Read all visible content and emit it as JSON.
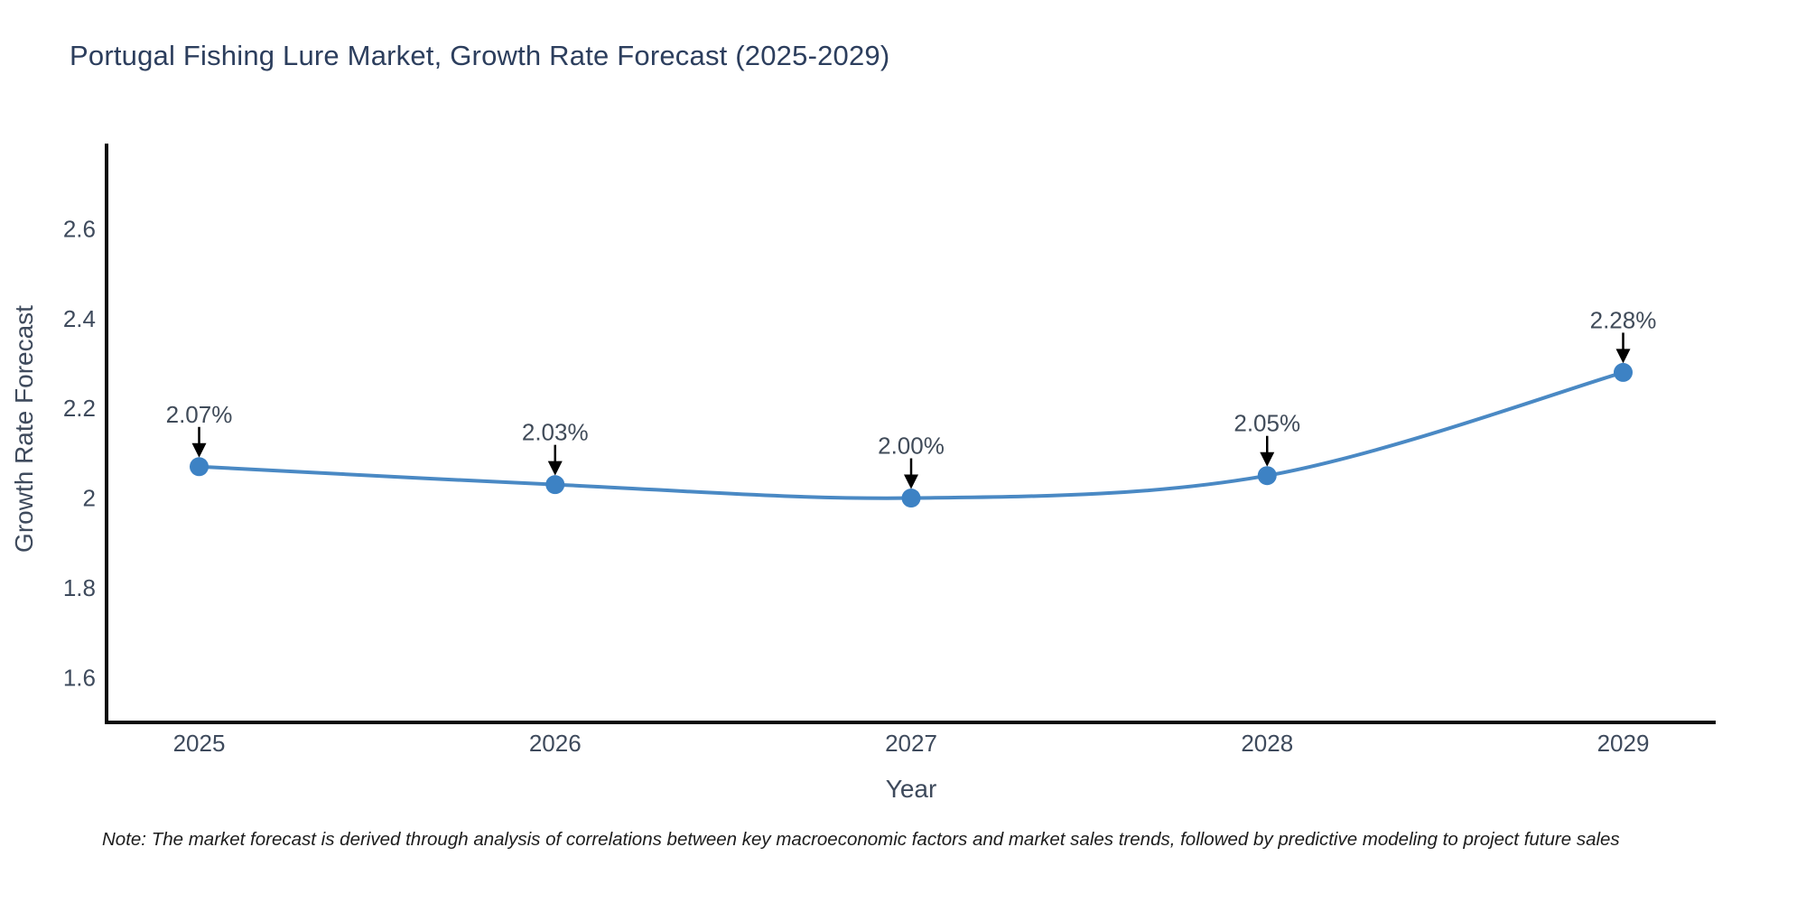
{
  "chart_data": {
    "type": "line",
    "title": "Portugal Fishing Lure Market, Growth Rate Forecast (2025-2029)",
    "xlabel": "Year",
    "ylabel": "Growth Rate Forecast",
    "x": [
      2025,
      2026,
      2027,
      2028,
      2029
    ],
    "y": [
      2.07,
      2.03,
      2.0,
      2.05,
      2.28
    ],
    "point_labels": [
      "2.07%",
      "2.03%",
      "2.00%",
      "2.05%",
      "2.28%"
    ],
    "xtick_labels": [
      "2025",
      "2026",
      "2027",
      "2028",
      "2029"
    ],
    "yticks": [
      2.6,
      2.4,
      2.2,
      2,
      1.8,
      1.6
    ],
    "ytick_labels": [
      "2.6",
      "2.4",
      "2.2",
      "2",
      "1.8",
      "1.6"
    ],
    "xlim": [
      2024.74,
      2029.26
    ],
    "ylim": [
      1.5,
      2.79
    ],
    "grid": false,
    "legend": false,
    "line_shape": "spline",
    "line_color": "#4a89c4",
    "marker_color": "#3d82c4",
    "axis_color": "#0a0a0a",
    "annotation_arrow_color": "#000000"
  },
  "note": "Note: The market forecast is derived through analysis of correlations between key macroeconomic factors and market sales trends, followed by predictive modeling to project future sales"
}
